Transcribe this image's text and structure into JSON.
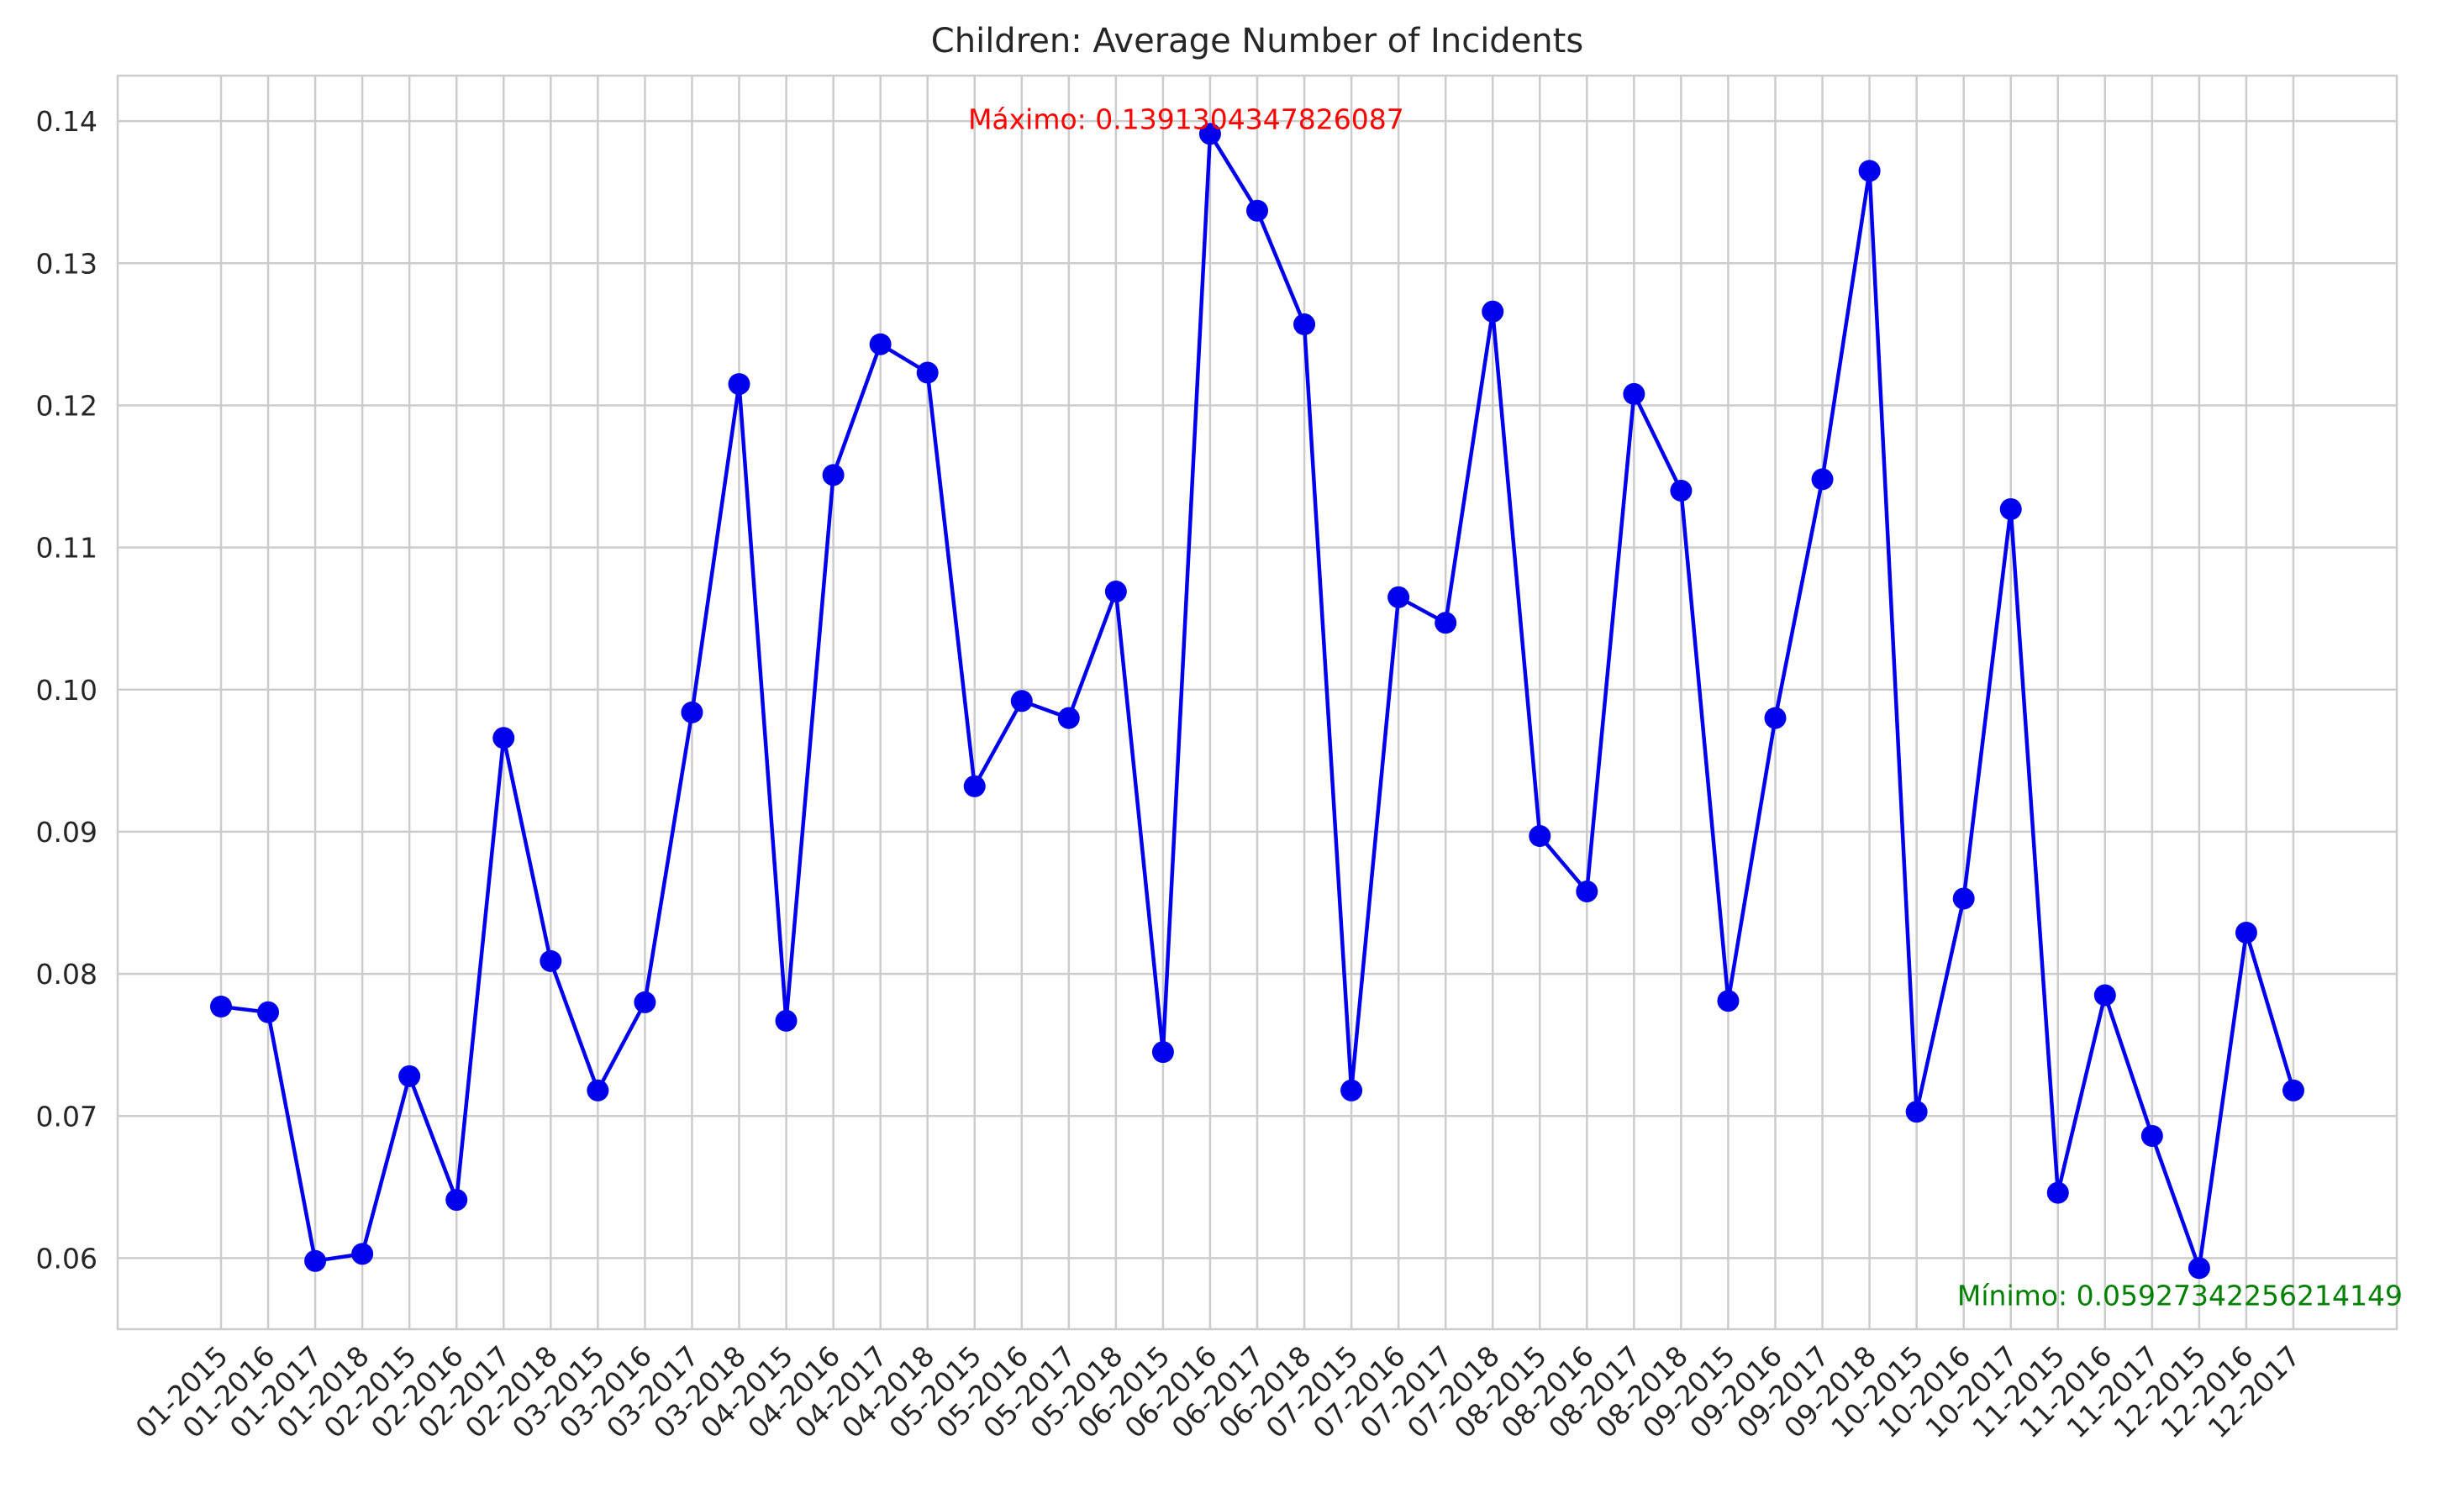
{
  "chart_data": {
    "type": "line",
    "title": "Children: Average Number of Incidents",
    "xlabel": "",
    "ylabel": "",
    "ylim": [
      0.055,
      0.1432
    ],
    "yticks": [
      0.06,
      0.07,
      0.08,
      0.09,
      0.1,
      0.11,
      0.12,
      0.13,
      0.14
    ],
    "ytick_labels": [
      "0.06",
      "0.07",
      "0.08",
      "0.09",
      "0.10",
      "0.11",
      "0.12",
      "0.13",
      "0.14"
    ],
    "grid": true,
    "line_color": "#0000ee",
    "categories": [
      "01-2015",
      "01-2016",
      "01-2017",
      "01-2018",
      "02-2015",
      "02-2016",
      "02-2017",
      "02-2018",
      "03-2015",
      "03-2016",
      "03-2017",
      "03-2018",
      "04-2015",
      "04-2016",
      "04-2017",
      "04-2018",
      "05-2015",
      "05-2016",
      "05-2017",
      "05-2018",
      "06-2015",
      "06-2016",
      "06-2017",
      "06-2018",
      "07-2015",
      "07-2016",
      "07-2017",
      "07-2018",
      "08-2015",
      "08-2016",
      "08-2017",
      "08-2018",
      "09-2015",
      "09-2016",
      "09-2017",
      "09-2018",
      "10-2015",
      "10-2016",
      "10-2017",
      "11-2015",
      "11-2016",
      "11-2017",
      "12-2015",
      "12-2016",
      "12-2017"
    ],
    "series": [
      {
        "values": [
          0.0777,
          0.0773,
          0.0598,
          0.0603,
          0.0728,
          0.0641,
          0.0966,
          0.0809,
          0.0718,
          0.078,
          0.0984,
          0.1215,
          0.0767,
          0.1151,
          0.1243,
          0.1223,
          0.0932,
          0.0992,
          0.098,
          0.1069,
          0.0745,
          0.1391,
          0.1337,
          0.1257,
          0.0718,
          0.1065,
          0.1047,
          0.1266,
          0.0897,
          0.0858,
          0.1208,
          0.114,
          0.0781,
          0.098,
          0.1148,
          0.1365,
          0.0703,
          0.0853,
          0.1127,
          0.0646,
          0.0785,
          0.0686,
          0.0593,
          0.0829,
          0.0718
        ]
      }
    ],
    "annotations": [
      {
        "id": "max",
        "text": "Máximo: 0.1391304347826087",
        "x_index": 21,
        "y": 0.1391,
        "color": "#ff0000"
      },
      {
        "id": "min",
        "text": "Mínimo: 0.05927342256214149",
        "x_index": 42,
        "y": 0.0593,
        "color": "#008000"
      }
    ]
  }
}
